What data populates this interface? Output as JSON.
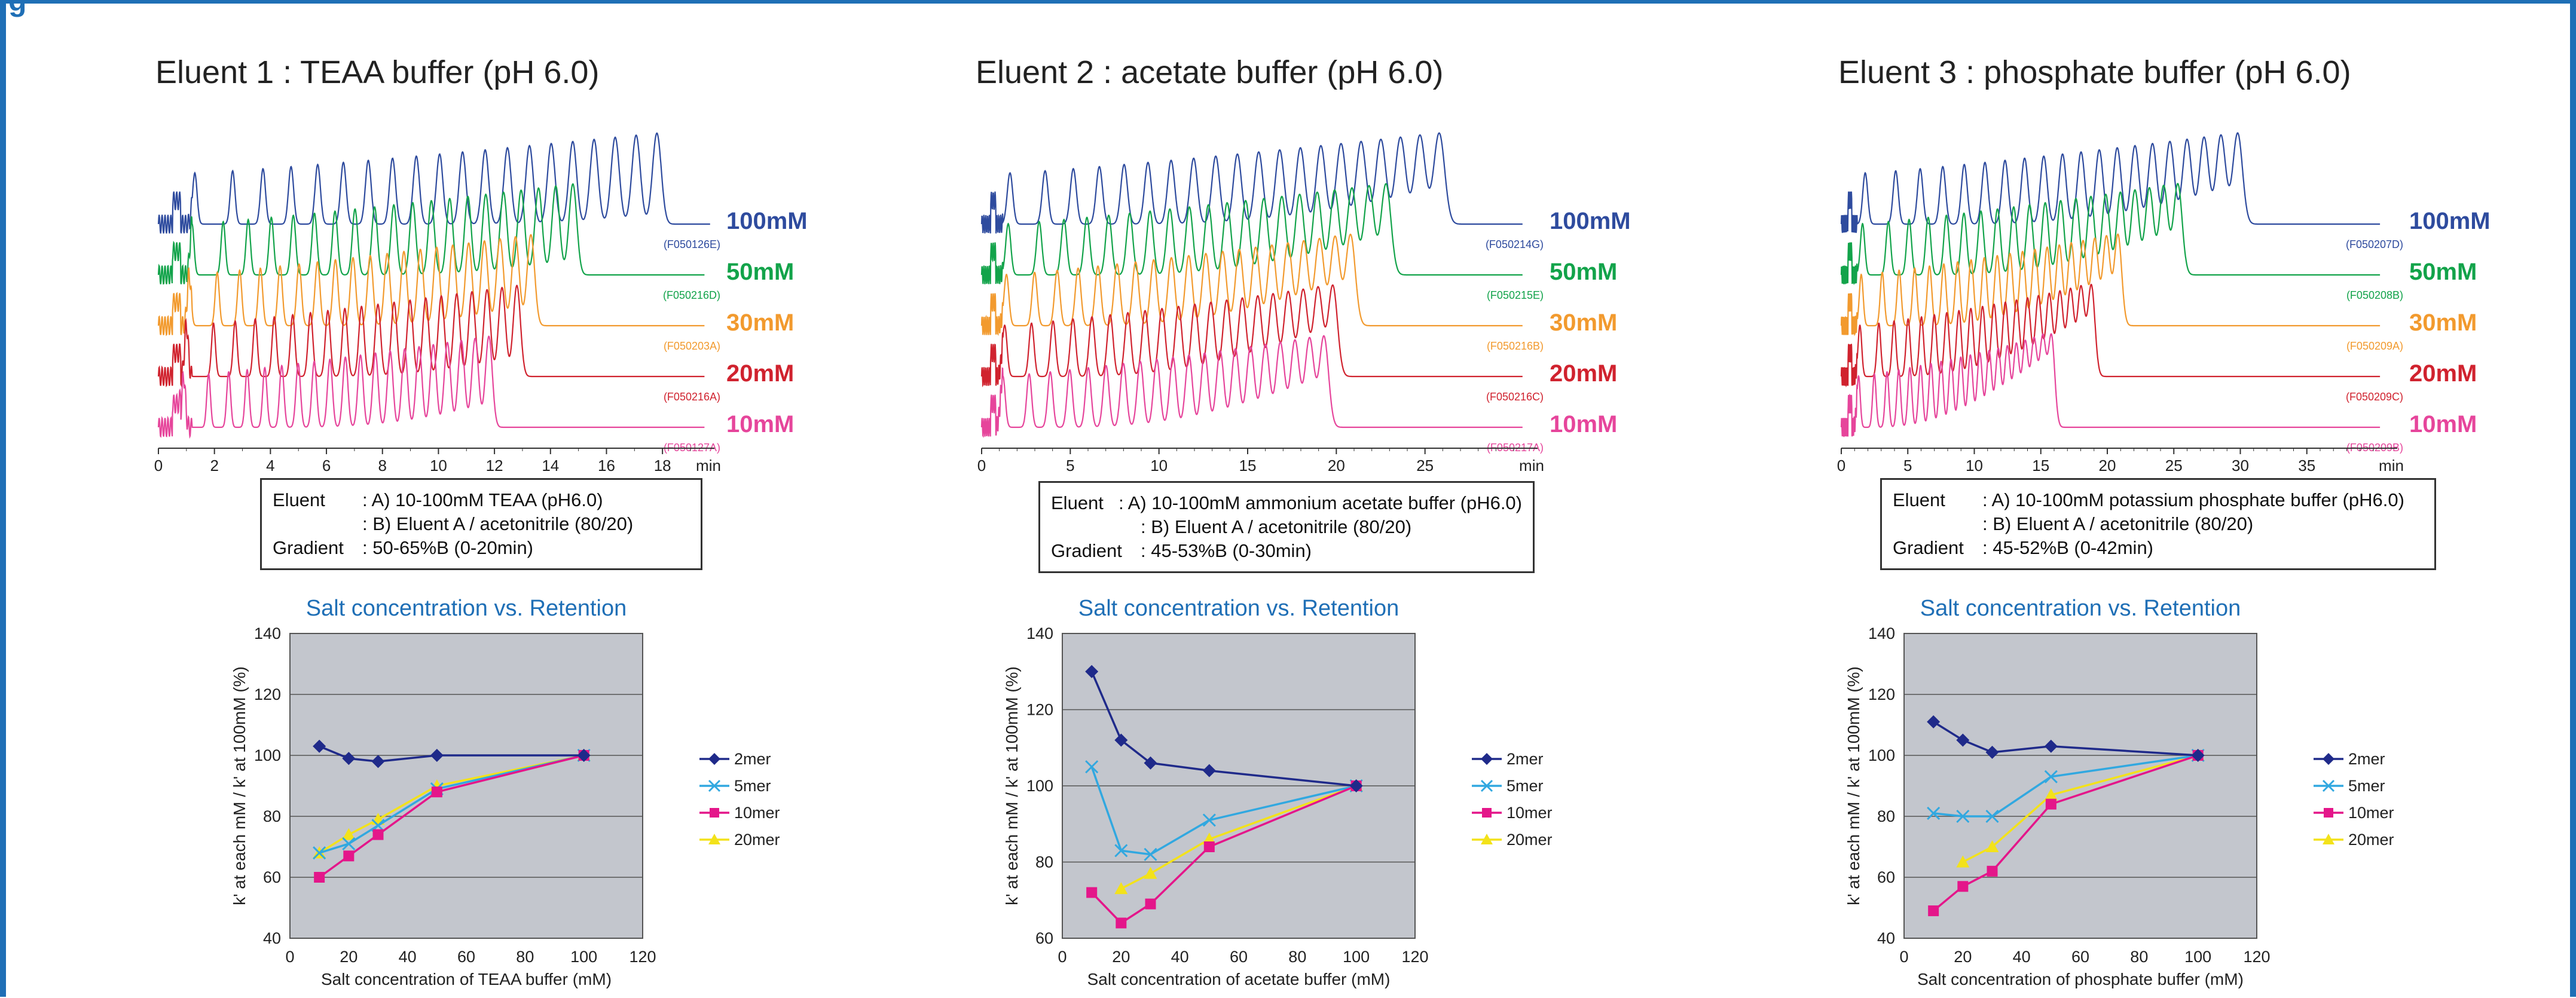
{
  "heading_fragment": "g",
  "colors": {
    "frame": "#1f6fb6",
    "c100": "#2e4b9e",
    "c50": "#12a34a",
    "c30": "#f29a2e",
    "c20": "#d0222e",
    "c10": "#e6459b",
    "plot_bg": "#c3c6cd",
    "s2mer": "#1f2a8a",
    "s5mer": "#31a8e0",
    "s10mer": "#e4168a",
    "s20mer": "#f3e21a",
    "scatter_title": "#1f6fb6"
  },
  "panels": [
    {
      "title": "Eluent 1 : TEAA buffer (pH 6.0)",
      "chromatogram": {
        "x_ticks": [
          "0",
          "2",
          "4",
          "6",
          "8",
          "10",
          "12",
          "14",
          "16",
          "18"
        ],
        "x_unit": "min",
        "x_max": 19,
        "traces": [
          {
            "label": "100mM",
            "code": "(F050126E)",
            "color": "#2e4b9e",
            "end": 18.5,
            "n": 20,
            "start": 1.3,
            "width": 0.28
          },
          {
            "label": "50mM",
            "code": "(F050216D)",
            "color": "#12a34a",
            "end": 15.5,
            "n": 20,
            "start": 1.2,
            "width": 0.25
          },
          {
            "label": "30mM",
            "code": "(F050203A)",
            "color": "#f29a2e",
            "end": 14.0,
            "n": 20,
            "start": 1.1,
            "width": 0.24
          },
          {
            "label": "20mM",
            "code": "(F050216A)",
            "color": "#d0222e",
            "end": 13.5,
            "n": 20,
            "start": 1.0,
            "width": 0.23
          },
          {
            "label": "10mM",
            "code": "(F050127A)",
            "color": "#e6459b",
            "end": 12.5,
            "n": 20,
            "start": 0.9,
            "width": 0.22
          }
        ]
      },
      "conditions": {
        "eluent_label": "Eluent",
        "eluent_a": ": A) 10-100mM TEAA (pH6.0)",
        "eluent_b": ": B) Eluent A / acetonitrile (80/20)",
        "gradient_label": "Gradient",
        "gradient": ": 50-65%B (0-20min)"
      },
      "scatter": {
        "title": "Salt concentration vs. Retention",
        "xlabel": "Salt concentration of TEAA buffer (mM)",
        "ylabel": "k' at each mM / k' at 100mM (%)",
        "xlim": [
          0,
          120
        ],
        "ylim": [
          40,
          140
        ],
        "yticks": [
          "40",
          "60",
          "80",
          "100",
          "120",
          "140"
        ],
        "xticks": [
          "0",
          "20",
          "40",
          "60",
          "80",
          "100",
          "120"
        ],
        "x": [
          10,
          20,
          30,
          50,
          100
        ],
        "series": [
          {
            "name": "2mer",
            "values": [
              103,
              99,
              98,
              100,
              100
            ]
          },
          {
            "name": "5mer",
            "values": [
              68,
              71,
              77,
              89,
              100
            ]
          },
          {
            "name": "10mer",
            "values": [
              60,
              67,
              74,
              88,
              100
            ]
          },
          {
            "name": "20mer",
            "values": [
              68,
              74,
              79,
              90,
              100
            ]
          }
        ]
      }
    },
    {
      "title": "Eluent 2 : acetate buffer (pH 6.0)",
      "chromatogram": {
        "x_ticks": [
          "0",
          "5",
          "10",
          "15",
          "20",
          "25"
        ],
        "x_unit": "min",
        "x_max": 30,
        "traces": [
          {
            "label": "100mM",
            "code": "(F050214G)",
            "color": "#2e4b9e",
            "end": 26.5,
            "n": 20,
            "start": 1.6,
            "width": 0.55
          },
          {
            "label": "50mM",
            "code": "(F050215E)",
            "color": "#12a34a",
            "end": 23.5,
            "n": 20,
            "start": 1.5,
            "width": 0.5
          },
          {
            "label": "30mM",
            "code": "(F050216B)",
            "color": "#f29a2e",
            "end": 21.5,
            "n": 20,
            "start": 1.4,
            "width": 0.48
          },
          {
            "label": "20mM",
            "code": "(F050216C)",
            "color": "#d0222e",
            "end": 20.5,
            "n": 20,
            "start": 1.3,
            "width": 0.47
          },
          {
            "label": "10mM",
            "code": "(F050217A)",
            "color": "#e6459b",
            "end": 20.0,
            "n": 20,
            "start": 1.2,
            "width": 0.46
          }
        ]
      },
      "conditions": {
        "eluent_label": "Eluent",
        "eluent_a": ": A) 10-100mM ammonium acetate buffer (pH6.0)",
        "eluent_b": ": B) Eluent A / acetonitrile (80/20)",
        "gradient_label": "Gradient",
        "gradient": ": 45-53%B (0-30min)"
      },
      "scatter": {
        "title": "Salt concentration vs. Retention",
        "xlabel": "Salt concentration of acetate buffer (mM)",
        "ylabel": "k' at each mM / k' at 100mM (%)",
        "xlim": [
          0,
          120
        ],
        "ylim": [
          60,
          140
        ],
        "yticks": [
          "60",
          "80",
          "100",
          "120",
          "140"
        ],
        "xticks": [
          "0",
          "20",
          "40",
          "60",
          "80",
          "100",
          "120"
        ],
        "x": [
          10,
          20,
          30,
          50,
          100
        ],
        "series": [
          {
            "name": "2mer",
            "values": [
              130,
              112,
              106,
              104,
              100
            ]
          },
          {
            "name": "5mer",
            "values": [
              105,
              83,
              82,
              91,
              100
            ]
          },
          {
            "name": "10mer",
            "values": [
              72,
              64,
              69,
              84,
              100
            ]
          },
          {
            "name": "20mer",
            "values": [
              73,
              77,
              86,
              100
            ]
          }
        ],
        "series_x": [
          null,
          null,
          null,
          [
            20,
            30,
            50,
            100
          ]
        ]
      }
    },
    {
      "title": "Eluent 3 : phosphate buffer (pH 6.0)",
      "chromatogram": {
        "x_ticks": [
          "0",
          "5",
          "10",
          "15",
          "20",
          "25",
          "30",
          "35"
        ],
        "x_unit": "min",
        "x_max": 40,
        "traces": [
          {
            "label": "100mM",
            "code": "(F050207D)",
            "color": "#2e4b9e",
            "end": 30.5,
            "n": 20,
            "start": 1.8,
            "width": 0.65
          },
          {
            "label": "50mM",
            "code": "(F050208B)",
            "color": "#12a34a",
            "end": 26.0,
            "n": 20,
            "start": 1.6,
            "width": 0.58
          },
          {
            "label": "30mM",
            "code": "(F050209A)",
            "color": "#f29a2e",
            "end": 21.5,
            "n": 20,
            "start": 1.5,
            "width": 0.5
          },
          {
            "label": "20mM",
            "code": "(F050209C)",
            "color": "#d0222e",
            "end": 19.5,
            "n": 20,
            "start": 1.4,
            "width": 0.48
          },
          {
            "label": "10mM",
            "code": "(F050209B)",
            "color": "#e6459b",
            "end": 16.5,
            "n": 20,
            "start": 1.3,
            "width": 0.44
          }
        ]
      },
      "conditions": {
        "eluent_label": "Eluent",
        "eluent_a": ": A) 10-100mM potassium phosphate buffer (pH6.0)",
        "eluent_b": ": B) Eluent A / acetonitrile (80/20)",
        "gradient_label": "Gradient",
        "gradient": ": 45-52%B (0-42min)"
      },
      "scatter": {
        "title": "Salt concentration vs. Retention",
        "xlabel": "Salt concentration of phosphate buffer (mM)",
        "ylabel": "k' at each mM / k' at 100mM (%)",
        "xlim": [
          0,
          120
        ],
        "ylim": [
          40,
          140
        ],
        "yticks": [
          "40",
          "60",
          "80",
          "100",
          "120",
          "140"
        ],
        "xticks": [
          "0",
          "20",
          "40",
          "60",
          "80",
          "100",
          "120"
        ],
        "x": [
          10,
          20,
          30,
          50,
          100
        ],
        "series": [
          {
            "name": "2mer",
            "values": [
              111,
              105,
              101,
              103,
              100
            ]
          },
          {
            "name": "5mer",
            "values": [
              81,
              80,
              80,
              93,
              100
            ]
          },
          {
            "name": "10mer",
            "values": [
              49,
              57,
              62,
              84,
              100
            ]
          },
          {
            "name": "20mer",
            "values": [
              65,
              70,
              87,
              100
            ]
          }
        ],
        "series_x": [
          null,
          null,
          null,
          [
            20,
            30,
            50,
            100
          ]
        ]
      }
    }
  ]
}
